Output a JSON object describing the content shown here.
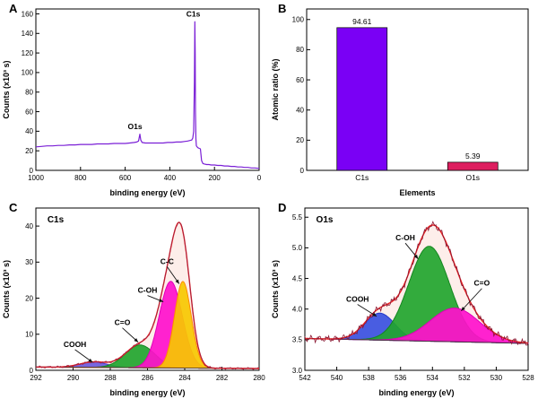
{
  "figure": {
    "panels": [
      {
        "letter": "A"
      },
      {
        "letter": "B"
      },
      {
        "letter": "C"
      },
      {
        "letter": "D"
      }
    ]
  },
  "chart_data": [
    {
      "id": "A",
      "type": "line",
      "xlabel": "binding energy (eV)",
      "ylabel": "Counts (x10³ s)",
      "xlim": [
        1000,
        0
      ],
      "ylim": [
        0,
        165
      ],
      "xtick_vals": [
        1000,
        800,
        600,
        400,
        200,
        0
      ],
      "xtick_labels": [
        "1000",
        "800",
        "600",
        "400",
        "200",
        "0"
      ],
      "ytick_vals": [
        0,
        20,
        40,
        60,
        80,
        100,
        120,
        140,
        160
      ],
      "ytick_labels": [
        "0",
        "20",
        "40",
        "60",
        "80",
        "100",
        "120",
        "140",
        "160"
      ],
      "line_color": "#7a1fd6",
      "points": [
        [
          1000,
          24
        ],
        [
          975,
          24.5
        ],
        [
          950,
          25
        ],
        [
          925,
          25
        ],
        [
          900,
          25.5
        ],
        [
          875,
          25.5
        ],
        [
          850,
          26
        ],
        [
          825,
          26
        ],
        [
          800,
          26.5
        ],
        [
          775,
          26.5
        ],
        [
          750,
          26.5
        ],
        [
          725,
          27
        ],
        [
          700,
          27
        ],
        [
          675,
          27
        ],
        [
          650,
          27.5
        ],
        [
          625,
          27.5
        ],
        [
          600,
          27.5
        ],
        [
          580,
          28
        ],
        [
          560,
          28.5
        ],
        [
          548,
          29
        ],
        [
          540,
          30
        ],
        [
          534,
          37
        ],
        [
          530,
          31
        ],
        [
          524,
          28.5
        ],
        [
          510,
          28
        ],
        [
          490,
          28
        ],
        [
          470,
          28
        ],
        [
          450,
          28
        ],
        [
          430,
          28
        ],
        [
          410,
          28.5
        ],
        [
          390,
          28.5
        ],
        [
          370,
          29
        ],
        [
          350,
          29
        ],
        [
          335,
          29.5
        ],
        [
          320,
          30
        ],
        [
          310,
          30.5
        ],
        [
          302,
          31
        ],
        [
          297,
          33
        ],
        [
          293,
          40
        ],
        [
          290,
          90
        ],
        [
          288,
          152
        ],
        [
          286.5,
          120
        ],
        [
          285,
          60
        ],
        [
          283,
          32
        ],
        [
          281,
          25
        ],
        [
          278,
          24
        ],
        [
          273,
          23
        ],
        [
          268,
          22.5
        ],
        [
          263,
          22
        ],
        [
          258,
          10
        ],
        [
          252,
          7
        ],
        [
          245,
          6.5
        ],
        [
          235,
          6
        ],
        [
          225,
          6
        ],
        [
          215,
          5.5
        ],
        [
          200,
          5.5
        ],
        [
          185,
          5
        ],
        [
          170,
          5
        ],
        [
          155,
          4.5
        ],
        [
          140,
          4.5
        ],
        [
          125,
          4
        ],
        [
          110,
          4
        ],
        [
          95,
          3.5
        ],
        [
          80,
          3.5
        ],
        [
          65,
          3
        ],
        [
          50,
          3
        ],
        [
          35,
          2.5
        ],
        [
          20,
          2.5
        ],
        [
          0,
          2
        ]
      ],
      "annotations": [
        {
          "text": "C1s",
          "x": 295,
          "y": 157
        },
        {
          "text": "O1s",
          "x": 556,
          "y": 42
        }
      ]
    },
    {
      "id": "B",
      "type": "bar",
      "xlabel": "Elements",
      "ylabel": "Atomic ratio (%)",
      "ylim": [
        0,
        107
      ],
      "ytick_vals": [
        0,
        20,
        40,
        60,
        80,
        100
      ],
      "ytick_labels": [
        "0",
        "20",
        "40",
        "60",
        "80",
        "100"
      ],
      "categories": [
        "C1s",
        "O1s"
      ],
      "values": [
        94.61,
        5.39
      ],
      "value_labels": [
        "94.61",
        "5.39"
      ],
      "bar_colors": [
        "#7a00f5",
        "#dd1e5f"
      ]
    },
    {
      "id": "C",
      "type": "fit",
      "label": "C1s",
      "xlabel": "binding energy (eV)",
      "ylabel": "Counts (x10³ s)",
      "xlim": [
        292,
        280
      ],
      "ylim": [
        0,
        45
      ],
      "xtick_vals": [
        292,
        290,
        288,
        286,
        284,
        282,
        280
      ],
      "xtick_labels": [
        "292",
        "290",
        "288",
        "286",
        "284",
        "282",
        "280"
      ],
      "ytick_vals": [
        0,
        10,
        20,
        30,
        40
      ],
      "ytick_labels": [
        "0",
        "10",
        "20",
        "30",
        "40"
      ],
      "baseline": [
        0.9,
        0.5
      ],
      "noise": 0.22,
      "envelope_color": "#e82222",
      "raw_color": "#a02040",
      "components": [
        {
          "label": "COOH",
          "center": 288.9,
          "height": 1.5,
          "sigma": 0.75,
          "color": "#5040d0",
          "fill": "#6a5ae0"
        },
        {
          "label": "C=O",
          "center": 286.4,
          "height": 6.3,
          "sigma": 0.8,
          "color": "#13861f",
          "fill": "#22a52e"
        },
        {
          "label": "C-OH",
          "center": 284.75,
          "height": 24,
          "sigma": 0.62,
          "color": "#e000b8",
          "fill": "#ff10cc"
        },
        {
          "label": "C-C",
          "center": 284.1,
          "height": 24,
          "sigma": 0.45,
          "color": "#ff8c00",
          "fill": "#f7c800"
        }
      ],
      "annotations": [
        {
          "text": "COOH",
          "x": 289.9,
          "y": 6.5,
          "ax": 288.95,
          "ay": 2.2
        },
        {
          "text": "C=O",
          "x": 287.35,
          "y": 12.5,
          "ax": 286.5,
          "ay": 7.8
        },
        {
          "text": "C-OH",
          "x": 286.0,
          "y": 21.5,
          "ax": 285.15,
          "ay": 19.0
        },
        {
          "text": "C-C",
          "x": 284.95,
          "y": 29.5,
          "ax": 284.3,
          "ay": 24.0
        }
      ]
    },
    {
      "id": "D",
      "type": "fit",
      "label": "O1s",
      "xlabel": "binding energy (eV)",
      "ylabel": "Counts (x10³ s)",
      "xlim": [
        542,
        528
      ],
      "ylim": [
        3.0,
        5.65
      ],
      "xtick_vals": [
        542,
        540,
        538,
        536,
        534,
        532,
        530,
        528
      ],
      "xtick_labels": [
        "542",
        "540",
        "538",
        "536",
        "534",
        "532",
        "530",
        "528"
      ],
      "ytick_vals": [
        3.0,
        3.5,
        4.0,
        4.5,
        5.0,
        5.5
      ],
      "ytick_labels": [
        "3.0",
        "3.5",
        "4.0",
        "4.5",
        "5.0",
        "5.5"
      ],
      "baseline": [
        3.52,
        3.44
      ],
      "noise": 0.04,
      "envelope_color": "#e82222",
      "raw_color": "#8a1530",
      "components": [
        {
          "label": "COOH",
          "center": 537.3,
          "height": 0.44,
          "sigma": 0.95,
          "color": "#2438c8",
          "fill": "#3a50e0"
        },
        {
          "label": "C-OH",
          "center": 534.2,
          "height": 1.55,
          "sigma": 1.28,
          "color": "#13861f",
          "fill": "#22a52e"
        },
        {
          "label": "C=O",
          "center": 532.6,
          "height": 0.55,
          "sigma": 1.55,
          "color": "#e000b8",
          "fill": "#ff10cc"
        }
      ],
      "annotations": [
        {
          "text": "COOH",
          "x": 538.7,
          "y": 4.12,
          "ax": 537.5,
          "ay": 3.88
        },
        {
          "text": "C-OH",
          "x": 535.7,
          "y": 5.12,
          "ax": 534.9,
          "ay": 4.82
        },
        {
          "text": "C=O",
          "x": 530.9,
          "y": 4.38,
          "ax": 532.2,
          "ay": 3.97
        }
      ]
    }
  ]
}
